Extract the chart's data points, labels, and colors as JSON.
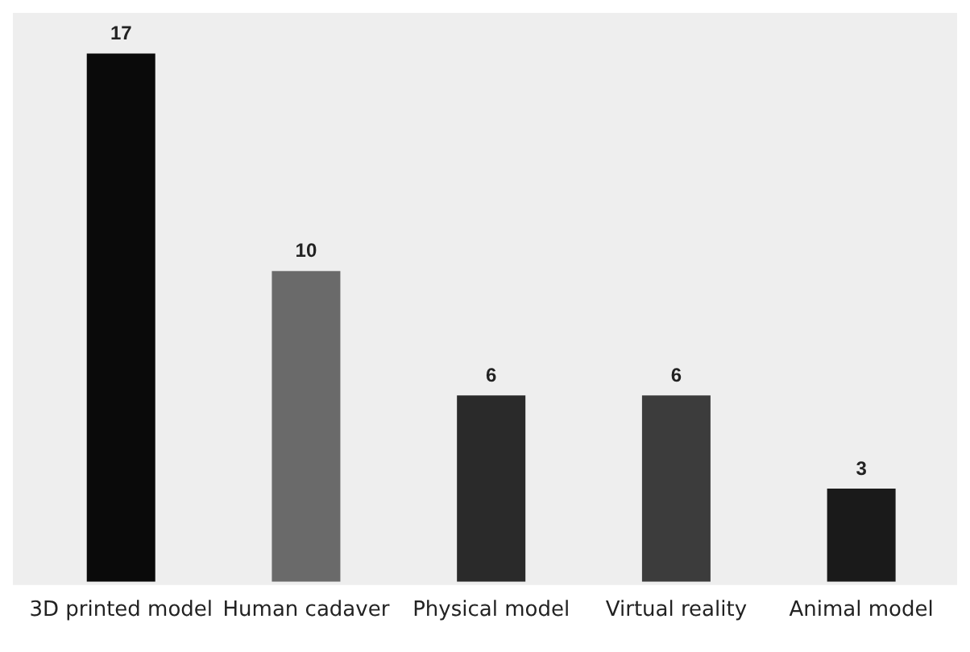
{
  "chart_data": {
    "type": "bar",
    "categories": [
      "3D printed model",
      "Human cadaver",
      "Physical model",
      "Virtual reality",
      "Animal model"
    ],
    "values": [
      17,
      10,
      6,
      6,
      3
    ],
    "colors": [
      "#0a0a0a",
      "#6a6a6a",
      "#2a2a2a",
      "#3c3c3c",
      "#1a1a1a"
    ],
    "data_labels": true,
    "grid": false,
    "legend": false
  }
}
